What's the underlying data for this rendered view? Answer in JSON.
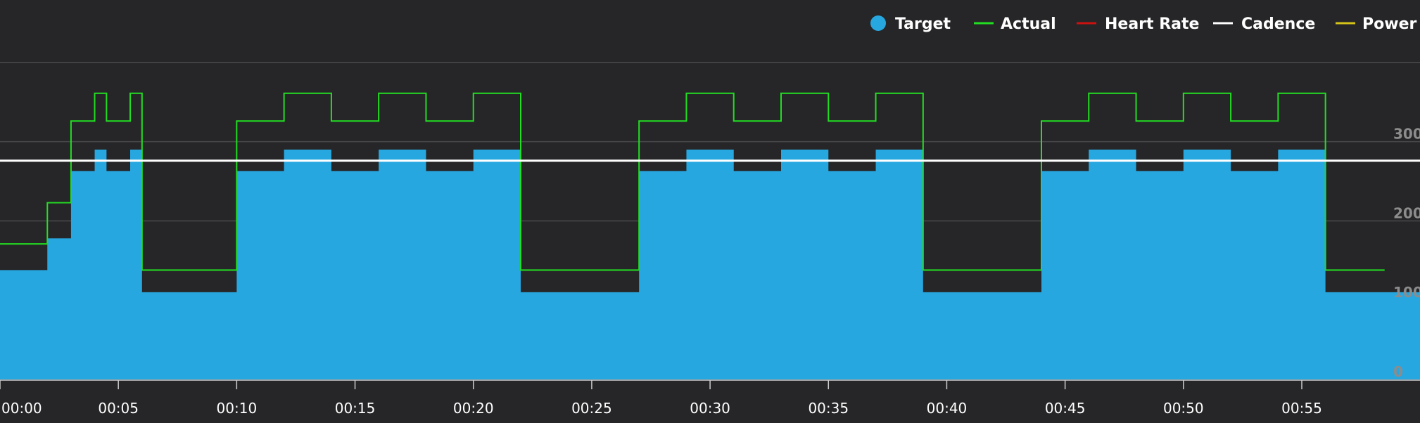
{
  "chart_data": {
    "type": "area",
    "x_unit": "minutes",
    "xlim": [
      0,
      60
    ],
    "ylim": [
      0,
      400
    ],
    "yticks": [
      0,
      100,
      200,
      300
    ],
    "xticks": [
      0,
      5,
      10,
      15,
      20,
      25,
      30,
      35,
      40,
      45,
      50,
      55
    ],
    "xtick_labels": [
      "00:00",
      "00:05",
      "00:10",
      "00:15",
      "00:20",
      "00:25",
      "00:30",
      "00:35",
      "00:40",
      "00:45",
      "00:50",
      "00:55"
    ],
    "ytick_labels": [
      "0",
      "100",
      "200",
      "300"
    ],
    "grid": true,
    "legend": {
      "position": "top-right",
      "entries": [
        "Target",
        "Actual",
        "Heart Rate",
        "Cadence",
        "Power"
      ]
    },
    "series": [
      {
        "name": "Target",
        "kind": "step-area",
        "color": "#27a7e0",
        "points": [
          [
            0,
            138
          ],
          [
            2,
            138
          ],
          [
            2,
            178
          ],
          [
            3,
            178
          ],
          [
            3,
            263
          ],
          [
            4,
            263
          ],
          [
            4,
            290
          ],
          [
            4.5,
            290
          ],
          [
            4.5,
            263
          ],
          [
            5.5,
            263
          ],
          [
            5.5,
            290
          ],
          [
            6,
            290
          ],
          [
            6,
            110
          ],
          [
            10,
            110
          ],
          [
            10,
            263
          ],
          [
            12,
            263
          ],
          [
            12,
            290
          ],
          [
            14,
            290
          ],
          [
            14,
            263
          ],
          [
            16,
            263
          ],
          [
            16,
            290
          ],
          [
            18,
            290
          ],
          [
            18,
            263
          ],
          [
            20,
            263
          ],
          [
            20,
            290
          ],
          [
            22,
            290
          ],
          [
            22,
            110
          ],
          [
            27,
            110
          ],
          [
            27,
            263
          ],
          [
            29,
            263
          ],
          [
            29,
            290
          ],
          [
            31,
            290
          ],
          [
            31,
            263
          ],
          [
            33,
            263
          ],
          [
            33,
            290
          ],
          [
            35,
            290
          ],
          [
            35,
            263
          ],
          [
            37,
            263
          ],
          [
            37,
            290
          ],
          [
            39,
            290
          ],
          [
            39,
            110
          ],
          [
            44,
            110
          ],
          [
            44,
            263
          ],
          [
            46,
            263
          ],
          [
            46,
            290
          ],
          [
            48,
            290
          ],
          [
            48,
            263
          ],
          [
            50,
            263
          ],
          [
            50,
            290
          ],
          [
            52,
            290
          ],
          [
            52,
            263
          ],
          [
            54,
            263
          ],
          [
            54,
            290
          ],
          [
            56,
            290
          ],
          [
            56,
            110
          ],
          [
            60,
            110
          ]
        ]
      },
      {
        "name": "Actual",
        "kind": "step-line",
        "color": "#22dd22",
        "points": [
          [
            0,
            171
          ],
          [
            2,
            171
          ],
          [
            2,
            223
          ],
          [
            3,
            223
          ],
          [
            3,
            326
          ],
          [
            4,
            326
          ],
          [
            4,
            361
          ],
          [
            4.5,
            361
          ],
          [
            4.5,
            326
          ],
          [
            5.5,
            326
          ],
          [
            5.5,
            361
          ],
          [
            6,
            361
          ],
          [
            6,
            138
          ],
          [
            10,
            138
          ],
          [
            10,
            326
          ],
          [
            12,
            326
          ],
          [
            12,
            361
          ],
          [
            14,
            361
          ],
          [
            14,
            326
          ],
          [
            16,
            326
          ],
          [
            16,
            361
          ],
          [
            18,
            361
          ],
          [
            18,
            326
          ],
          [
            20,
            326
          ],
          [
            20,
            361
          ],
          [
            22,
            361
          ],
          [
            22,
            138
          ],
          [
            27,
            138
          ],
          [
            27,
            326
          ],
          [
            29,
            326
          ],
          [
            29,
            361
          ],
          [
            31,
            361
          ],
          [
            31,
            326
          ],
          [
            33,
            326
          ],
          [
            33,
            361
          ],
          [
            35,
            361
          ],
          [
            35,
            326
          ],
          [
            37,
            326
          ],
          [
            37,
            361
          ],
          [
            39,
            361
          ],
          [
            39,
            138
          ],
          [
            44,
            138
          ],
          [
            44,
            326
          ],
          [
            46,
            326
          ],
          [
            46,
            361
          ],
          [
            48,
            361
          ],
          [
            48,
            326
          ],
          [
            50,
            326
          ],
          [
            50,
            361
          ],
          [
            52,
            361
          ],
          [
            52,
            326
          ],
          [
            54,
            326
          ],
          [
            54,
            361
          ],
          [
            56,
            361
          ],
          [
            56,
            138
          ],
          [
            58.5,
            138
          ]
        ]
      },
      {
        "name": "Heart Rate",
        "kind": "line",
        "color": "#cc1111",
        "points": []
      },
      {
        "name": "Cadence",
        "kind": "line",
        "color": "#ffffff",
        "points": [
          [
            0,
            276
          ],
          [
            60,
            276
          ]
        ]
      },
      {
        "name": "Power",
        "kind": "line",
        "color": "#d4c318",
        "points": []
      }
    ],
    "colors": {
      "background": "#262628",
      "grid": "#4a4a4c",
      "axis": "#cccccc"
    }
  }
}
